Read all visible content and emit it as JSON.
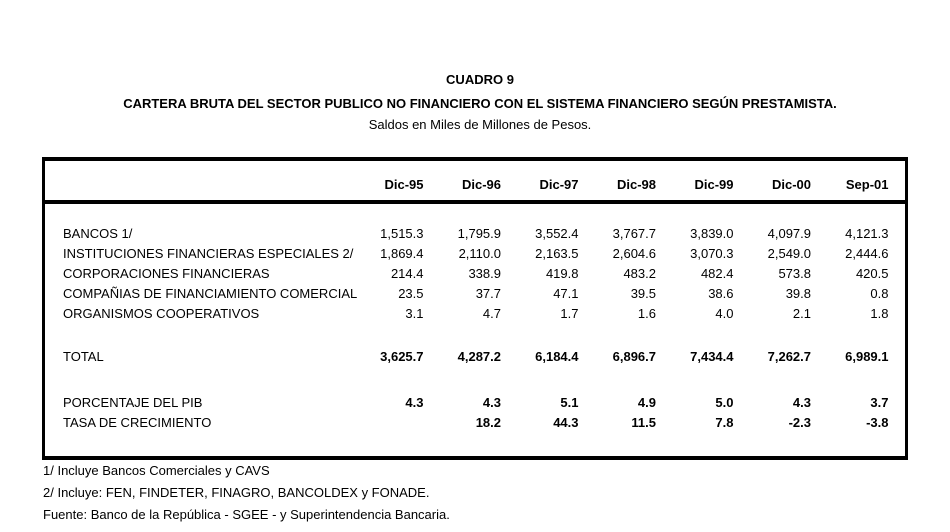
{
  "header": {
    "caption": "CUADRO 9",
    "title": "CARTERA BRUTA DEL SECTOR PUBLICO NO FINANCIERO CON EL SISTEMA FINANCIERO SEGÚN PRESTAMISTA.",
    "subtitle": "Saldos en Miles de Millones de Pesos."
  },
  "chart_data": {
    "type": "table",
    "columns": [
      "Dic-95",
      "Dic-96",
      "Dic-97",
      "Dic-98",
      "Dic-99",
      "Dic-00",
      "Sep-01"
    ],
    "sections": [
      {
        "rows": [
          {
            "label": "BANCOS 1/",
            "values": [
              "1,515.3",
              "1,795.9",
              "3,552.4",
              "3,767.7",
              "3,839.0",
              "4,097.9",
              "4,121.3"
            ],
            "values_bold": false
          },
          {
            "label": "INSTITUCIONES FINANCIERAS ESPECIALES 2/",
            "values": [
              "1,869.4",
              "2,110.0",
              "2,163.5",
              "2,604.6",
              "3,070.3",
              "2,549.0",
              "2,444.6"
            ],
            "values_bold": false
          },
          {
            "label": "CORPORACIONES FINANCIERAS",
            "values": [
              "214.4",
              "338.9",
              "419.8",
              "483.2",
              "482.4",
              "573.8",
              "420.5"
            ],
            "values_bold": false
          },
          {
            "label": "COMPAÑIAS DE FINANCIAMIENTO COMERCIAL",
            "values": [
              "23.5",
              "37.7",
              "47.1",
              "39.5",
              "38.6",
              "39.8",
              "0.8"
            ],
            "values_bold": false
          },
          {
            "label": "ORGANISMOS COOPERATIVOS",
            "values": [
              "3.1",
              "4.7",
              "1.7",
              "1.6",
              "4.0",
              "2.1",
              "1.8"
            ],
            "values_bold": false
          }
        ]
      },
      {
        "rows": [
          {
            "label": "TOTAL",
            "values": [
              "3,625.7",
              "4,287.2",
              "6,184.4",
              "6,896.7",
              "7,434.4",
              "7,262.7",
              "6,989.1"
            ],
            "values_bold": true
          }
        ]
      },
      {
        "rows": [
          {
            "label": "PORCENTAJE DEL PIB",
            "values": [
              "4.3",
              "4.3",
              "5.1",
              "4.9",
              "5.0",
              "4.3",
              "3.7"
            ],
            "values_bold": true
          },
          {
            "label": "TASA DE CRECIMIENTO",
            "values": [
              "",
              "18.2",
              "44.3",
              "11.5",
              "7.8",
              "-2.3",
              "-3.8"
            ],
            "values_bold": true
          }
        ]
      }
    ]
  },
  "footnotes": [
    "1/ Incluye Bancos Comerciales y CAVS",
    "2/ Incluye: FEN, FINDETER, FINAGRO, BANCOLDEX y FONADE.",
    "Fuente: Banco de la República - SGEE - y Superintendencia Bancaria."
  ],
  "colors": {
    "text": "#000000",
    "border": "#000000",
    "background": "#ffffff"
  }
}
